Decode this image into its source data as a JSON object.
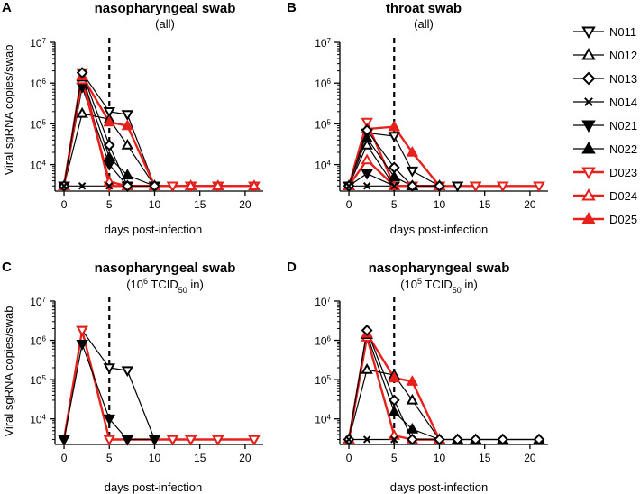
{
  "legend": [
    {
      "name": "N011",
      "marker": "tri-down-open",
      "color": "#000000"
    },
    {
      "name": "N012",
      "marker": "tri-up-open",
      "color": "#000000"
    },
    {
      "name": "N013",
      "marker": "diamond-open",
      "color": "#000000"
    },
    {
      "name": "N014",
      "marker": "x",
      "color": "#000000"
    },
    {
      "name": "N021",
      "marker": "tri-down-filled",
      "color": "#000000"
    },
    {
      "name": "N022",
      "marker": "tri-up-filled",
      "color": "#000000"
    },
    {
      "name": "D023",
      "marker": "tri-down-open",
      "color": "#e8201c"
    },
    {
      "name": "D024",
      "marker": "tri-up-open",
      "color": "#e8201c"
    },
    {
      "name": "D025",
      "marker": "tri-up-filled",
      "color": "#e8201c"
    }
  ],
  "chart_data": [
    {
      "panel": "A",
      "type": "line",
      "title": "nasopharyngeal swab",
      "subtitle": "(all)",
      "xlabel": "days post-infection",
      "ylabel": "Viral sgRNA copies/swab",
      "xlim": [
        -1,
        22
      ],
      "xticks": [
        0,
        5,
        10,
        15,
        20
      ],
      "ylim_log10": [
        3.35,
        7
      ],
      "yticks_log10": [
        4,
        5,
        6,
        7
      ],
      "ytick_labels": [
        "10",
        "10",
        "10",
        "10"
      ],
      "ytick_exponents": [
        "4",
        "5",
        "6",
        "7"
      ],
      "baseline": 3000,
      "vline_x": 5,
      "series": [
        {
          "name": "N011",
          "marker": "tri-down-open",
          "color": "#000000",
          "x": [
            0,
            2,
            5,
            7,
            10,
            12,
            14,
            17,
            21
          ],
          "y": [
            3000,
            1800000,
            200000,
            170000,
            3000,
            3000,
            3000,
            3000,
            3000
          ]
        },
        {
          "name": "D023",
          "marker": "tri-down-open",
          "color": "#e8201c",
          "x": [
            0,
            2,
            5,
            7,
            10,
            12,
            14,
            17,
            21
          ],
          "y": [
            3000,
            1800000,
            3000,
            3000,
            3000,
            3000,
            3000,
            3000,
            3000
          ]
        },
        {
          "name": "N021",
          "marker": "tri-down-filled",
          "color": "#000000",
          "x": [
            0,
            2,
            5,
            7,
            10
          ],
          "y": [
            3000,
            800000,
            10000,
            3000,
            3000
          ]
        },
        {
          "name": "N012",
          "marker": "tri-up-open",
          "color": "#000000",
          "x": [
            0,
            2,
            5,
            7,
            10,
            14,
            17,
            21
          ],
          "y": [
            3000,
            180000,
            130000,
            30000,
            3000,
            3000,
            3000,
            3000
          ]
        },
        {
          "name": "D024",
          "marker": "tri-up-open",
          "color": "#e8201c",
          "x": [
            0,
            2,
            5,
            7,
            10,
            14,
            17,
            21
          ],
          "y": [
            3000,
            1200000,
            3800,
            3000,
            3000,
            3000,
            3000,
            3000
          ]
        },
        {
          "name": "N022",
          "marker": "tri-up-filled",
          "color": "#000000",
          "x": [
            0,
            2,
            5,
            7,
            10
          ],
          "y": [
            3000,
            1400000,
            15000,
            5500,
            3000
          ]
        },
        {
          "name": "D025",
          "marker": "tri-up-filled",
          "color": "#e8201c",
          "x": [
            0,
            2,
            5,
            7,
            10
          ],
          "y": [
            3000,
            1500000,
            110000,
            90000,
            3000
          ]
        },
        {
          "name": "N013",
          "marker": "diamond-open",
          "color": "#000000",
          "x": [
            0,
            2,
            5,
            7,
            10
          ],
          "y": [
            3000,
            1800000,
            30000,
            3000,
            3000
          ]
        },
        {
          "name": "N014",
          "marker": "x",
          "color": "#000000",
          "x": [
            0,
            2,
            5
          ],
          "y": [
            3000,
            3000,
            3000
          ]
        }
      ]
    },
    {
      "panel": "B",
      "type": "line",
      "title": "throat swab",
      "subtitle": "(all)",
      "xlabel": "days post-infection",
      "ylabel": "",
      "xlim": [
        -1,
        22
      ],
      "xticks": [
        0,
        5,
        10,
        15,
        20
      ],
      "ylim_log10": [
        3.35,
        7
      ],
      "yticks_log10": [
        4,
        5,
        6,
        7
      ],
      "ytick_labels": [
        "10",
        "10",
        "10",
        "10"
      ],
      "ytick_exponents": [
        "4",
        "5",
        "6",
        "7"
      ],
      "baseline": 3000,
      "vline_x": 5,
      "series": [
        {
          "name": "N011",
          "marker": "tri-down-open",
          "color": "#000000",
          "x": [
            0,
            2,
            5,
            7,
            10,
            12,
            14,
            17,
            21
          ],
          "y": [
            3000,
            60000,
            50000,
            7000,
            3000,
            3000,
            3000,
            3000,
            3000
          ]
        },
        {
          "name": "D023",
          "marker": "tri-down-open",
          "color": "#e8201c",
          "x": [
            0,
            2,
            5,
            7,
            10,
            14,
            17,
            21
          ],
          "y": [
            3000,
            110000,
            3000,
            3000,
            3000,
            3000,
            3000,
            3000
          ]
        },
        {
          "name": "N021",
          "marker": "tri-down-filled",
          "color": "#000000",
          "x": [
            0,
            2,
            5
          ],
          "y": [
            3000,
            6000,
            3000
          ]
        },
        {
          "name": "N012",
          "marker": "tri-up-open",
          "color": "#000000",
          "x": [
            0,
            2,
            5,
            7,
            10
          ],
          "y": [
            3000,
            30000,
            3000,
            3000,
            3000
          ]
        },
        {
          "name": "D024",
          "marker": "tri-up-open",
          "color": "#e8201c",
          "x": [
            0,
            2,
            5,
            7,
            10
          ],
          "y": [
            3000,
            13000,
            3000,
            3000,
            3000
          ]
        },
        {
          "name": "N022",
          "marker": "tri-up-filled",
          "color": "#000000",
          "x": [
            0,
            2,
            5,
            7,
            10
          ],
          "y": [
            3000,
            45000,
            5000,
            3000,
            3000
          ]
        },
        {
          "name": "D025",
          "marker": "tri-up-filled",
          "color": "#e8201c",
          "x": [
            0,
            2,
            5,
            7,
            10
          ],
          "y": [
            3000,
            75000,
            85000,
            20000,
            3000
          ]
        },
        {
          "name": "N013",
          "marker": "diamond-open",
          "color": "#000000",
          "x": [
            0,
            2,
            5,
            7,
            10
          ],
          "y": [
            3000,
            70000,
            8500,
            3000,
            3000
          ]
        },
        {
          "name": "N014",
          "marker": "x",
          "color": "#000000",
          "x": [
            0,
            2,
            5
          ],
          "y": [
            3000,
            3000,
            3000
          ]
        }
      ]
    },
    {
      "panel": "C",
      "type": "line",
      "title": "nasopharyngeal swab",
      "subtitle_prefix": "(10",
      "subtitle_exp": "6",
      "subtitle_mid": " TCID",
      "subtitle_sub": "50",
      "subtitle_suffix": " in)",
      "xlabel": "days post-infection",
      "ylabel": "Viral sgRNA copies/swab",
      "xlim": [
        -1,
        22
      ],
      "xticks": [
        0,
        5,
        10,
        15,
        20
      ],
      "ylim_log10": [
        3.35,
        7
      ],
      "yticks_log10": [
        4,
        5,
        6,
        7
      ],
      "ytick_labels": [
        "10",
        "10",
        "10",
        "10"
      ],
      "ytick_exponents": [
        "4",
        "5",
        "6",
        "7"
      ],
      "baseline": 3000,
      "vline_x": 5,
      "series": [
        {
          "name": "N011",
          "marker": "tri-down-open",
          "color": "#000000",
          "x": [
            0,
            2,
            5,
            7,
            10,
            12,
            14,
            17,
            21
          ],
          "y": [
            3000,
            1800000,
            200000,
            170000,
            3000,
            3000,
            3000,
            3000,
            3000
          ]
        },
        {
          "name": "D023",
          "marker": "tri-down-open",
          "color": "#e8201c",
          "x": [
            0,
            2,
            5,
            7,
            10,
            12,
            14,
            17,
            21
          ],
          "y": [
            3000,
            1800000,
            3000,
            3000,
            3000,
            3000,
            3000,
            3000,
            3000
          ]
        },
        {
          "name": "N021",
          "marker": "tri-down-filled",
          "color": "#000000",
          "x": [
            0,
            2,
            5,
            7,
            10
          ],
          "y": [
            3000,
            800000,
            10000,
            3000,
            3000
          ]
        }
      ]
    },
    {
      "panel": "D",
      "type": "line",
      "title": "nasopharyngeal swab",
      "subtitle_prefix": "(10",
      "subtitle_exp": "5",
      "subtitle_mid": " TCID",
      "subtitle_sub": "50",
      "subtitle_suffix": " in)",
      "xlabel": "days post-infection",
      "ylabel": "",
      "xlim": [
        -1,
        22
      ],
      "xticks": [
        0,
        5,
        10,
        15,
        20
      ],
      "ylim_log10": [
        3.35,
        7
      ],
      "yticks_log10": [
        4,
        5,
        6,
        7
      ],
      "ytick_labels": [
        "10",
        "10",
        "10",
        "10"
      ],
      "ytick_exponents": [
        "4",
        "5",
        "6",
        "7"
      ],
      "baseline": 3000,
      "vline_x": 5,
      "series": [
        {
          "name": "N012",
          "marker": "tri-up-open",
          "color": "#000000",
          "x": [
            0,
            2,
            5,
            7,
            10,
            12,
            14,
            17,
            21
          ],
          "y": [
            3000,
            180000,
            130000,
            30000,
            3000,
            3000,
            3000,
            3000,
            3000
          ]
        },
        {
          "name": "D024",
          "marker": "tri-up-open",
          "color": "#e8201c",
          "x": [
            0,
            2,
            5,
            7,
            10
          ],
          "y": [
            3000,
            1200000,
            3800,
            3000,
            3000
          ]
        },
        {
          "name": "N022",
          "marker": "tri-up-filled",
          "color": "#000000",
          "x": [
            0,
            2,
            5,
            7,
            10
          ],
          "y": [
            3000,
            1400000,
            15000,
            5500,
            3000
          ]
        },
        {
          "name": "D025",
          "marker": "tri-up-filled",
          "color": "#e8201c",
          "x": [
            0,
            2,
            5,
            7,
            10
          ],
          "y": [
            3000,
            1500000,
            110000,
            90000,
            3000
          ]
        },
        {
          "name": "N013",
          "marker": "diamond-open",
          "color": "#000000",
          "x": [
            0,
            2,
            5,
            7,
            10,
            12,
            14,
            17,
            21
          ],
          "y": [
            3000,
            1800000,
            30000,
            3000,
            3000,
            3000,
            3000,
            3000,
            3000
          ]
        },
        {
          "name": "N014",
          "marker": "x",
          "color": "#000000",
          "x": [
            0,
            2,
            5
          ],
          "y": [
            3000,
            3000,
            3000
          ]
        }
      ]
    }
  ]
}
